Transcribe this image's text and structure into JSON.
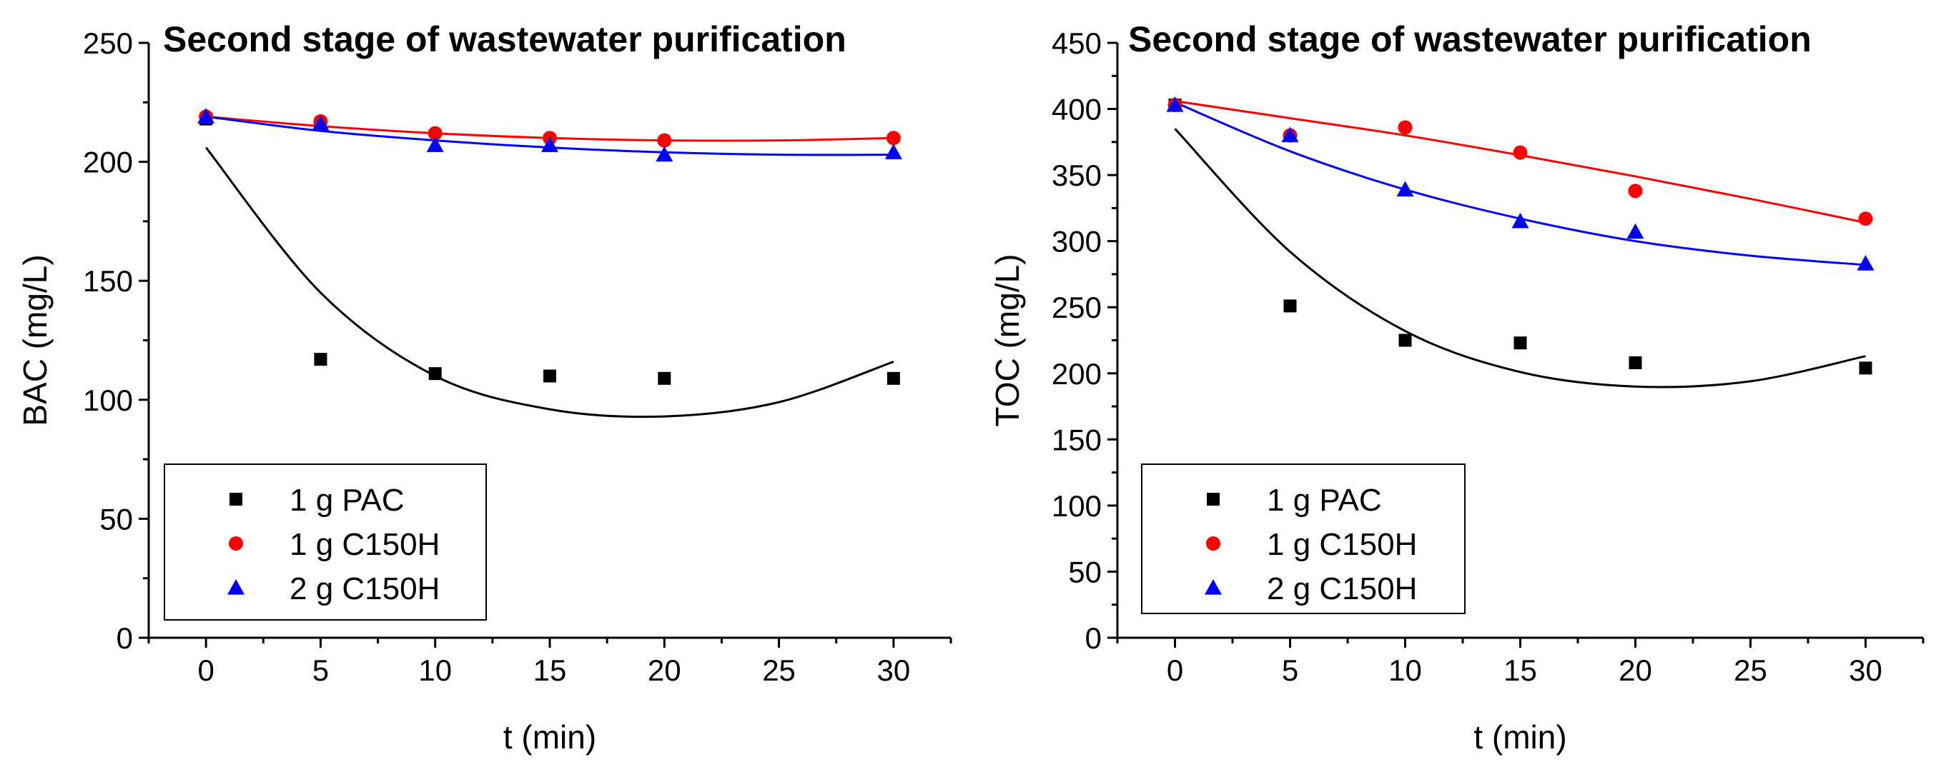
{
  "chart_data": [
    {
      "type": "scatter",
      "title": "Second stage of wastewater purification",
      "xlabel": "t (min)",
      "ylabel": "BAC (mg/L)",
      "xlim": [
        -2.5,
        32.5
      ],
      "ylim": [
        0,
        250
      ],
      "xticks": [
        0,
        5,
        10,
        15,
        20,
        25,
        30
      ],
      "yticks": [
        0,
        50,
        100,
        150,
        200,
        250
      ],
      "legend_position": "bottom-left",
      "series": [
        {
          "name": "1 g PAC",
          "marker": "square",
          "color": "#000000",
          "x": [
            0,
            5,
            10,
            15,
            20,
            30
          ],
          "y": [
            218,
            117,
            111,
            110,
            109,
            109
          ],
          "fit": {
            "x": [
              0,
              5,
              10,
              15,
              20,
              25,
              30
            ],
            "y": [
              206,
              145,
              110,
              96,
              93,
              99,
              116
            ]
          }
        },
        {
          "name": "1 g C150H",
          "marker": "circle",
          "color": "#ff0000",
          "x": [
            0,
            5,
            10,
            15,
            20,
            30
          ],
          "y": [
            219,
            217,
            212,
            210,
            209,
            210
          ],
          "fit": {
            "x": [
              0,
              5,
              10,
              15,
              20,
              25,
              30
            ],
            "y": [
              219,
              215,
              212,
              210,
              209,
              209,
              210
            ]
          }
        },
        {
          "name": "2 g C150H",
          "marker": "triangle",
          "color": "#0000ff",
          "x": [
            0,
            5,
            10,
            15,
            20,
            30
          ],
          "y": [
            219,
            216,
            207,
            207,
            203,
            204
          ],
          "fit": {
            "x": [
              0,
              5,
              10,
              15,
              20,
              25,
              30
            ],
            "y": [
              219,
              213,
              209,
              206,
              204,
              203,
              203
            ]
          }
        }
      ]
    },
    {
      "type": "scatter",
      "title": "Second stage of wastewater purification",
      "xlabel": "t (min)",
      "ylabel": "TOC (mg/L)",
      "xlim": [
        -2.5,
        32.5
      ],
      "ylim": [
        0,
        450
      ],
      "xticks": [
        0,
        5,
        10,
        15,
        20,
        25,
        30
      ],
      "yticks": [
        0,
        50,
        100,
        150,
        200,
        250,
        300,
        350,
        400,
        450
      ],
      "legend_position": "bottom-left",
      "series": [
        {
          "name": "1 g PAC",
          "marker": "square",
          "color": "#000000",
          "x": [
            0,
            5,
            10,
            15,
            20,
            30
          ],
          "y": [
            403,
            251,
            225,
            223,
            208,
            204
          ],
          "fit": {
            "x": [
              0,
              5,
              10,
              15,
              20,
              25,
              30
            ],
            "y": [
              385,
              292,
              232,
              201,
              190,
              194,
              213
            ]
          }
        },
        {
          "name": "1 g C150H",
          "marker": "circle",
          "color": "#ff0000",
          "x": [
            0,
            5,
            10,
            15,
            20,
            30
          ],
          "y": [
            403,
            380,
            386,
            367,
            338,
            317
          ],
          "fit": {
            "x": [
              0,
              5,
              10,
              15,
              20,
              25,
              30
            ],
            "y": [
              406,
              393,
              380,
              365,
              349,
              332,
              314
            ]
          }
        },
        {
          "name": "2 g C150H",
          "marker": "triangle",
          "color": "#0000ff",
          "x": [
            0,
            5,
            10,
            15,
            20,
            30
          ],
          "y": [
            403,
            380,
            339,
            315,
            307,
            283
          ],
          "fit": {
            "x": [
              0,
              5,
              10,
              15,
              20,
              25,
              30
            ],
            "y": [
              405,
              368,
              339,
              317,
              300,
              289,
              282
            ]
          }
        }
      ]
    }
  ]
}
